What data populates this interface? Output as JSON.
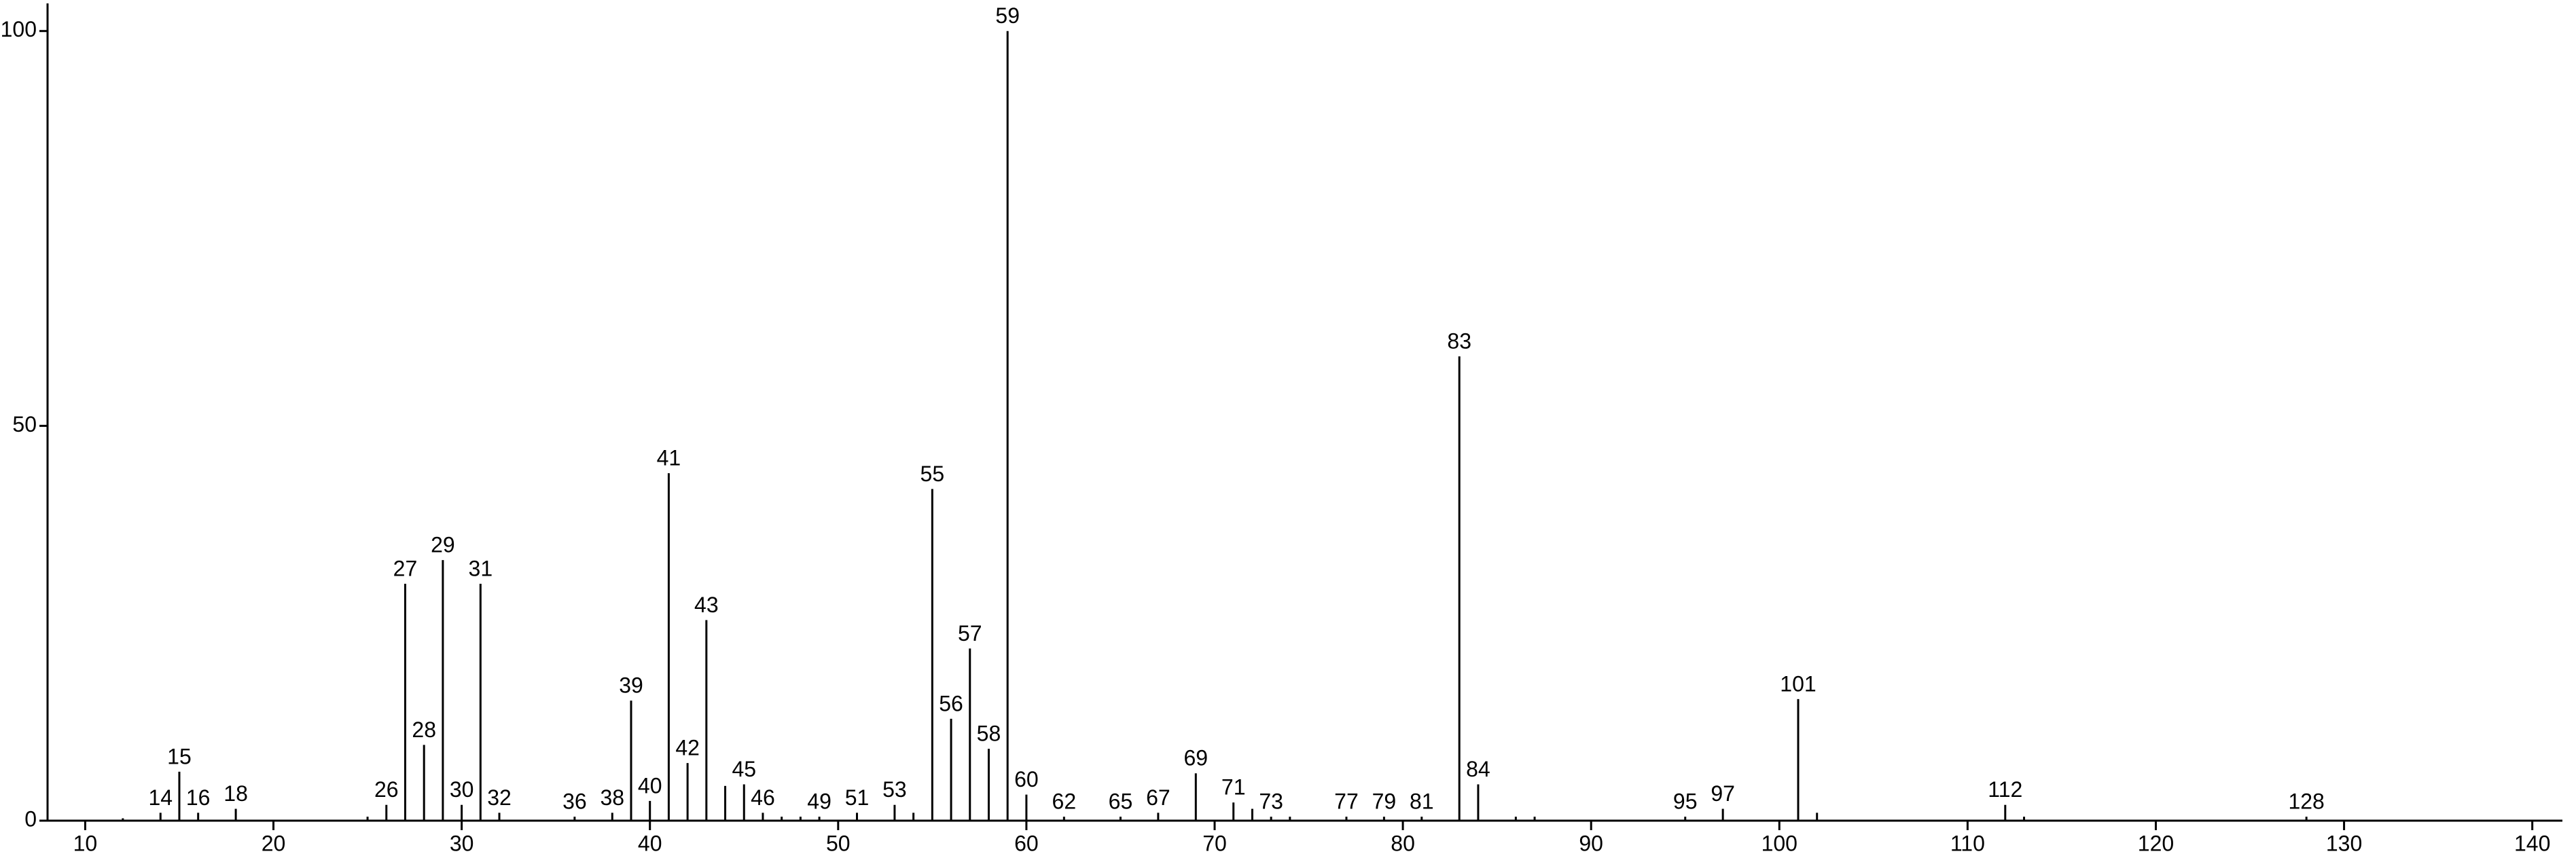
{
  "chart_data": {
    "type": "spectrum",
    "x": [
      14,
      15,
      16,
      18,
      26,
      27,
      28,
      29,
      30,
      31,
      32,
      36,
      38,
      39,
      40,
      41,
      42,
      43,
      45,
      46,
      49,
      51,
      53,
      55,
      56,
      57,
      58,
      59,
      60,
      62,
      65,
      67,
      69,
      71,
      73,
      77,
      79,
      81,
      83,
      84,
      95,
      97,
      101,
      112,
      128
    ],
    "values": [
      1,
      6.2,
      1,
      1.5,
      2,
      30,
      9.6,
      33,
      2,
      30,
      1,
      0.5,
      1,
      15.2,
      2.5,
      44,
      7.3,
      25.4,
      4.6,
      1,
      0.5,
      1,
      2,
      42,
      12.9,
      21.8,
      9.1,
      100,
      3.3,
      0.5,
      0.5,
      1,
      6,
      2.3,
      0.5,
      0.5,
      0.5,
      0.5,
      58.8,
      4.6,
      0.5,
      1.5,
      15.4,
      2,
      0.5
    ],
    "minor_x": [
      12,
      25,
      44,
      47,
      48,
      54,
      72,
      74,
      86,
      87,
      102,
      113
    ],
    "minor_values": [
      0.3,
      0.5,
      4.4,
      0.5,
      0.5,
      1,
      1.5,
      0.5,
      0.5,
      0.5,
      1,
      0.5
    ],
    "color": "#000000",
    "xlim": [
      8,
      141.6
    ],
    "ylim": [
      0,
      103.5
    ],
    "xticks": [
      10,
      20,
      30,
      40,
      50,
      60,
      70,
      80,
      90,
      100,
      110,
      120,
      130,
      140
    ],
    "yticks": [
      0,
      50,
      100
    ]
  }
}
